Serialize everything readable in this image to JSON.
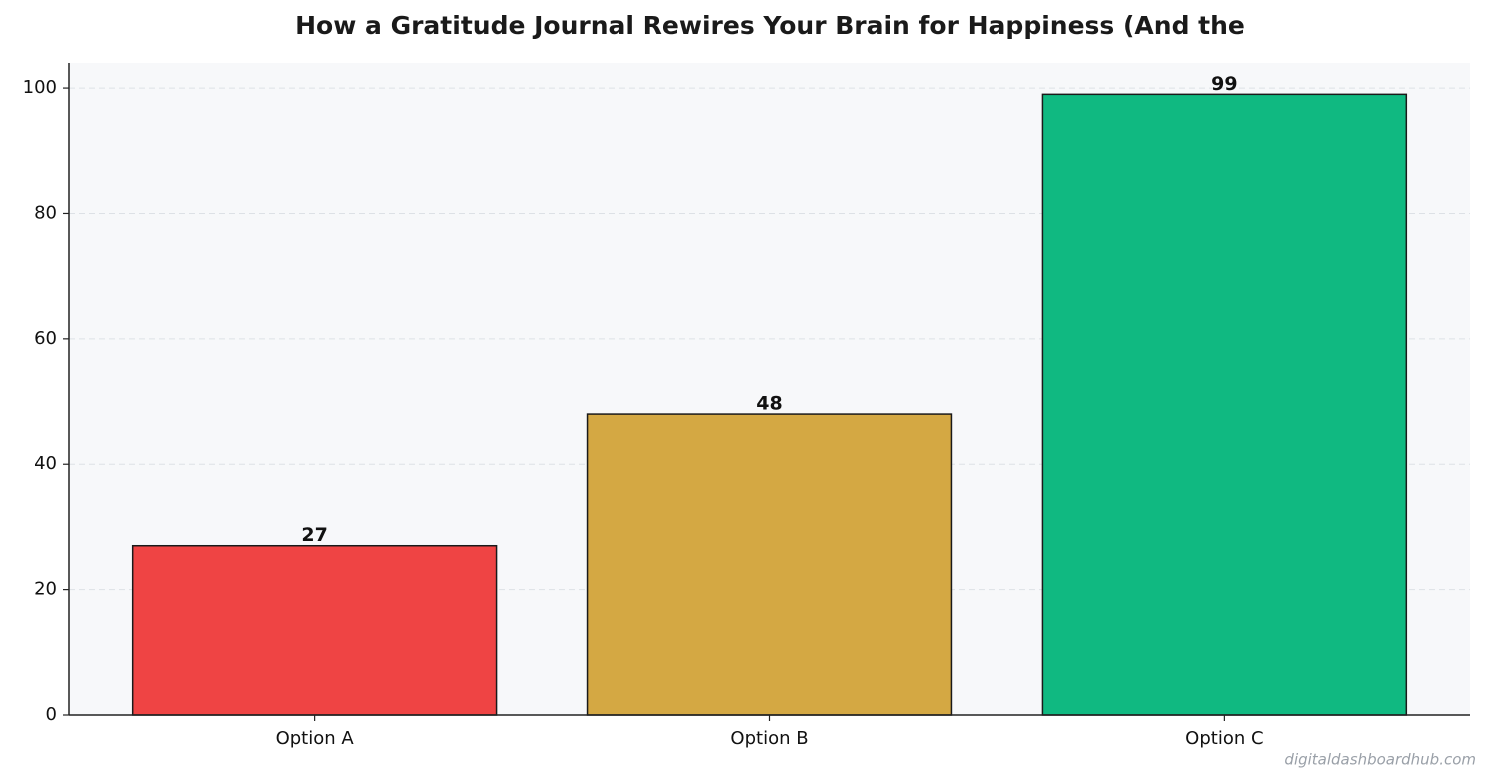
{
  "chart_data": {
    "type": "bar",
    "title": "How a Gratitude Journal Rewires Your Brain for Happiness (And the",
    "categories": [
      "Option A",
      "Option B",
      "Option C"
    ],
    "values": [
      27,
      48,
      99
    ],
    "colors": [
      "#ef4444",
      "#d4a843",
      "#10b981"
    ],
    "ylim": [
      0,
      104
    ],
    "yticks": [
      0,
      20,
      40,
      60,
      80,
      100
    ],
    "grid": true,
    "watermark": "digitaldashboardhub.com"
  }
}
